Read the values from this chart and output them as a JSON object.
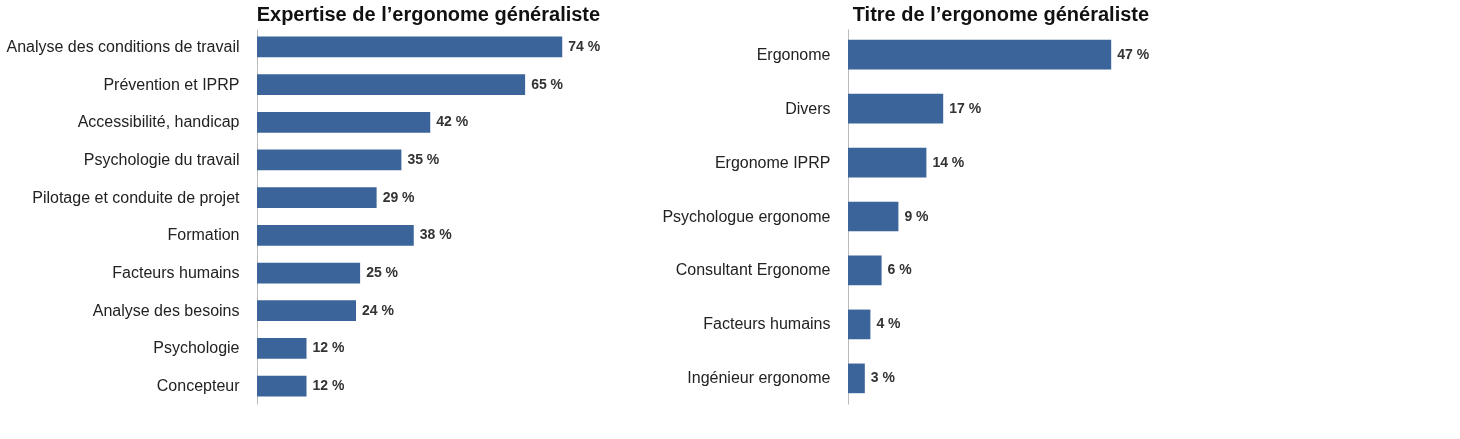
{
  "chart_data": [
    {
      "type": "bar",
      "orientation": "horizontal",
      "title": "Expertise de l’ergonome généraliste",
      "categories": [
        "Analyse des conditions de travail",
        "Prévention et  IPRP",
        "Accessibilité, handicap",
        "Psychologie du travail",
        "Pilotage et conduite de projet",
        "Formation",
        "Facteurs humains",
        "Analyse des besoins",
        "Psychologie",
        "Concepteur"
      ],
      "values": [
        74,
        65,
        42,
        35,
        29,
        38,
        25,
        24,
        12,
        12
      ],
      "value_labels": [
        "74 %",
        "65 %",
        "42 %",
        "35 %",
        "29 %",
        "38 %",
        "25 %",
        "24 %",
        "12 %",
        "12 %"
      ],
      "color": "#3b659a",
      "tick_labels": "y"
    },
    {
      "type": "bar",
      "orientation": "horizontal",
      "title": "Titre de l’ergonome généraliste",
      "categories": [
        "Ergonome",
        "Divers",
        "Ergonome IPRP",
        "Psychologue ergonome",
        "Consultant Ergonome",
        "Facteurs humains",
        "Ingénieur ergonome"
      ],
      "values": [
        47,
        17,
        14,
        9,
        6,
        4,
        3
      ],
      "value_labels": [
        "47 %",
        "17 %",
        "14 %",
        "9 %",
        "6 %",
        "4 %",
        "3 %"
      ],
      "color": "#3b659a",
      "tick_labels": "y"
    }
  ]
}
